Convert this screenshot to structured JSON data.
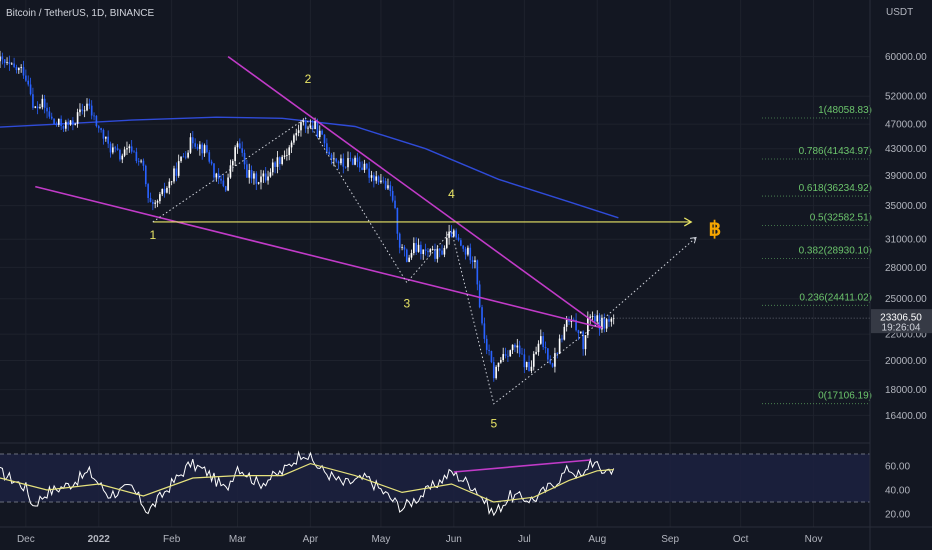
{
  "header": {
    "title": "Bitcoin / TetherUS, 1D, BINANCE",
    "currency": "USDT"
  },
  "colors": {
    "background": "#131722",
    "up_candle": "#ffffff",
    "down_candle": "#2962ff",
    "trendline": "#c13bc8",
    "ma_line": "#2f4bd8",
    "support_line": "#e9e566",
    "fib_text": "#6cc56c",
    "rsi_line": "#ffffff",
    "rsi_ma": "#e6e27d",
    "rsi_band": "#1c2140",
    "price_tag": "#363a45"
  },
  "chart_data": {
    "type": "candlestick",
    "symbol": "Bitcoin / TetherUS",
    "interval": "1D",
    "exchange": "BINANCE",
    "y_scale": "log",
    "ylim": [
      15000,
      68000
    ],
    "x_range": [
      "2021-11-20",
      "2022-11-25"
    ],
    "price_ticks": [
      16400,
      18000,
      20000,
      22000,
      25000,
      28000,
      31000,
      35000,
      39000,
      43000,
      47000,
      52000,
      60000
    ],
    "x_tick_labels": [
      {
        "date": "2021-12-01",
        "label": "Dec",
        "bold": false
      },
      {
        "date": "2022-01-01",
        "label": "2022",
        "bold": true
      },
      {
        "date": "2022-02-01",
        "label": "Feb",
        "bold": false
      },
      {
        "date": "2022-03-01",
        "label": "Mar",
        "bold": false
      },
      {
        "date": "2022-04-01",
        "label": "Apr",
        "bold": false
      },
      {
        "date": "2022-05-01",
        "label": "May",
        "bold": false
      },
      {
        "date": "2022-06-01",
        "label": "Jun",
        "bold": false
      },
      {
        "date": "2022-07-01",
        "label": "Jul",
        "bold": false
      },
      {
        "date": "2022-08-01",
        "label": "Aug",
        "bold": false
      },
      {
        "date": "2022-09-01",
        "label": "Sep",
        "bold": false
      },
      {
        "date": "2022-10-01",
        "label": "Oct",
        "bold": false
      },
      {
        "date": "2022-11-01",
        "label": "Nov",
        "bold": false
      }
    ],
    "price_path": [
      [
        "2021-11-20",
        59000
      ],
      [
        "2021-11-25",
        57500
      ],
      [
        "2021-11-30",
        57000
      ],
      [
        "2021-12-03",
        53500
      ],
      [
        "2021-12-04",
        49500
      ],
      [
        "2021-12-08",
        50500
      ],
      [
        "2021-12-13",
        47000
      ],
      [
        "2021-12-20",
        46800
      ],
      [
        "2021-12-27",
        50500
      ],
      [
        "2021-12-31",
        47000
      ],
      [
        "2022-01-05",
        43500
      ],
      [
        "2022-01-10",
        41800
      ],
      [
        "2022-01-15",
        43000
      ],
      [
        "2022-01-20",
        40000
      ],
      [
        "2022-01-22",
        35500
      ],
      [
        "2022-01-24",
        34500
      ],
      [
        "2022-02-01",
        38500
      ],
      [
        "2022-02-06",
        42000
      ],
      [
        "2022-02-10",
        44500
      ],
      [
        "2022-02-16",
        42500
      ],
      [
        "2022-02-20",
        38500
      ],
      [
        "2022-02-24",
        37500
      ],
      [
        "2022-03-01",
        44000
      ],
      [
        "2022-03-05",
        39500
      ],
      [
        "2022-03-08",
        38500
      ],
      [
        "2022-03-13",
        38800
      ],
      [
        "2022-03-17",
        41000
      ],
      [
        "2022-03-22",
        42500
      ],
      [
        "2022-03-28",
        47000
      ],
      [
        "2022-04-03",
        46500
      ],
      [
        "2022-04-10",
        42000
      ],
      [
        "2022-04-15",
        40500
      ],
      [
        "2022-04-20",
        41500
      ],
      [
        "2022-04-25",
        39500
      ],
      [
        "2022-05-01",
        38500
      ],
      [
        "2022-05-06",
        36000
      ],
      [
        "2022-05-09",
        30500
      ],
      [
        "2022-05-12",
        28800
      ],
      [
        "2022-05-15",
        30000
      ],
      [
        "2022-05-20",
        29500
      ],
      [
        "2022-05-26",
        29300
      ],
      [
        "2022-05-31",
        31800
      ],
      [
        "2022-06-05",
        29800
      ],
      [
        "2022-06-10",
        29000
      ],
      [
        "2022-06-13",
        22500
      ],
      [
        "2022-06-15",
        21000
      ],
      [
        "2022-06-18",
        19000
      ],
      [
        "2022-06-22",
        20500
      ],
      [
        "2022-06-27",
        21000
      ],
      [
        "2022-07-03",
        19300
      ],
      [
        "2022-07-08",
        21500
      ],
      [
        "2022-07-13",
        19800
      ],
      [
        "2022-07-19",
        23000
      ],
      [
        "2022-07-24",
        22500
      ],
      [
        "2022-07-26",
        21000
      ],
      [
        "2022-07-29",
        23800
      ],
      [
        "2022-08-02",
        22800
      ],
      [
        "2022-08-05",
        23000
      ],
      [
        "2022-08-08",
        23306.5
      ]
    ],
    "last_price": {
      "value": 23306.5,
      "label": "23306.50",
      "countdown": "19:26:04"
    },
    "moving_average": [
      [
        "2021-11-20",
        46500
      ],
      [
        "2021-12-15",
        47000
      ],
      [
        "2022-01-15",
        47700
      ],
      [
        "2022-02-20",
        48200
      ],
      [
        "2022-03-20",
        48000
      ],
      [
        "2022-04-20",
        46600
      ],
      [
        "2022-05-20",
        43000
      ],
      [
        "2022-06-20",
        38500
      ],
      [
        "2022-07-20",
        35500
      ],
      [
        "2022-08-10",
        33500
      ]
    ],
    "fibonacci_levels": [
      {
        "ratio": 1,
        "price": 48058.83,
        "label": "1(48058.83)"
      },
      {
        "ratio": 0.786,
        "price": 41434.97,
        "label": "0.786(41434.97)"
      },
      {
        "ratio": 0.618,
        "price": 36234.92,
        "label": "0.618(36234.92)"
      },
      {
        "ratio": 0.5,
        "price": 32582.51,
        "label": "0.5(32582.51)"
      },
      {
        "ratio": 0.382,
        "price": 28930.1,
        "label": "0.382(28930.10)"
      },
      {
        "ratio": 0.236,
        "price": 24411.02,
        "label": "0.236(24411.02)"
      },
      {
        "ratio": 0,
        "price": 17106.19,
        "label": "0(17106.19)"
      }
    ],
    "trendlines": [
      {
        "name": "upper-trendline",
        "from": [
          "2022-02-25",
          60000
        ],
        "to": [
          "2022-08-03",
          22500
        ]
      },
      {
        "name": "lower-trendline",
        "from": [
          "2021-12-05",
          37500
        ],
        "to": [
          "2022-08-03",
          22500
        ]
      }
    ],
    "support_line": {
      "from": [
        "2022-01-24",
        33000
      ],
      "to": [
        "2022-09-10",
        33000
      ]
    },
    "wave_labels": [
      {
        "label": "1",
        "date": "2022-01-24",
        "price": 31000
      },
      {
        "label": "2",
        "date": "2022-03-31",
        "price": 54500
      },
      {
        "label": "3",
        "date": "2022-05-12",
        "price": 24200
      },
      {
        "label": "4",
        "date": "2022-05-31",
        "price": 36000
      },
      {
        "label": "5",
        "date": "2022-06-18",
        "price": 15700
      }
    ],
    "wave_path": [
      [
        "2022-01-24",
        33000
      ],
      [
        "2022-03-30",
        48000
      ],
      [
        "2022-05-12",
        26500
      ],
      [
        "2022-05-31",
        32000
      ],
      [
        "2022-06-18",
        17100
      ],
      [
        "2022-08-01",
        22800
      ],
      [
        "2022-09-12",
        31200
      ]
    ],
    "projection_icon": {
      "symbol": "฿",
      "date": "2022-09-20",
      "price": 31400
    },
    "rsi": {
      "ticks": [
        20,
        40,
        60
      ],
      "ylim": [
        15,
        75
      ],
      "upper_band": 70,
      "lower_band": 30,
      "points": [
        [
          "2021-11-20",
          55
        ],
        [
          "2021-12-01",
          42
        ],
        [
          "2021-12-04",
          27
        ],
        [
          "2021-12-10",
          38
        ],
        [
          "2021-12-20",
          45
        ],
        [
          "2021-12-28",
          55
        ],
        [
          "2022-01-05",
          36
        ],
        [
          "2022-01-15",
          42
        ],
        [
          "2022-01-22",
          22
        ],
        [
          "2022-02-01",
          45
        ],
        [
          "2022-02-09",
          62
        ],
        [
          "2022-02-16",
          55
        ],
        [
          "2022-02-24",
          40
        ],
        [
          "2022-03-01",
          60
        ],
        [
          "2022-03-10",
          45
        ],
        [
          "2022-03-20",
          55
        ],
        [
          "2022-03-29",
          72
        ],
        [
          "2022-04-05",
          58
        ],
        [
          "2022-04-15",
          45
        ],
        [
          "2022-04-25",
          50
        ],
        [
          "2022-05-01",
          40
        ],
        [
          "2022-05-10",
          25
        ],
        [
          "2022-05-20",
          38
        ],
        [
          "2022-05-31",
          55
        ],
        [
          "2022-06-10",
          42
        ],
        [
          "2022-06-18",
          20
        ],
        [
          "2022-06-25",
          35
        ],
        [
          "2022-07-05",
          32
        ],
        [
          "2022-07-15",
          48
        ],
        [
          "2022-07-20",
          58
        ],
        [
          "2022-07-26",
          50
        ],
        [
          "2022-07-29",
          65
        ],
        [
          "2022-08-03",
          56
        ],
        [
          "2022-08-08",
          58
        ]
      ],
      "ma_points": [
        [
          "2021-11-20",
          50
        ],
        [
          "2021-12-10",
          40
        ],
        [
          "2022-01-01",
          45
        ],
        [
          "2022-01-20",
          35
        ],
        [
          "2022-02-10",
          50
        ],
        [
          "2022-03-01",
          52
        ],
        [
          "2022-03-20",
          52
        ],
        [
          "2022-04-01",
          62
        ],
        [
          "2022-04-20",
          52
        ],
        [
          "2022-05-10",
          38
        ],
        [
          "2022-05-31",
          45
        ],
        [
          "2022-06-18",
          30
        ],
        [
          "2022-07-05",
          34
        ],
        [
          "2022-07-20",
          48
        ],
        [
          "2022-08-01",
          56
        ],
        [
          "2022-08-08",
          57
        ]
      ],
      "divergence_line": {
        "from": [
          "2022-06-01",
          55
        ],
        "to": [
          "2022-07-29",
          65
        ]
      }
    }
  }
}
